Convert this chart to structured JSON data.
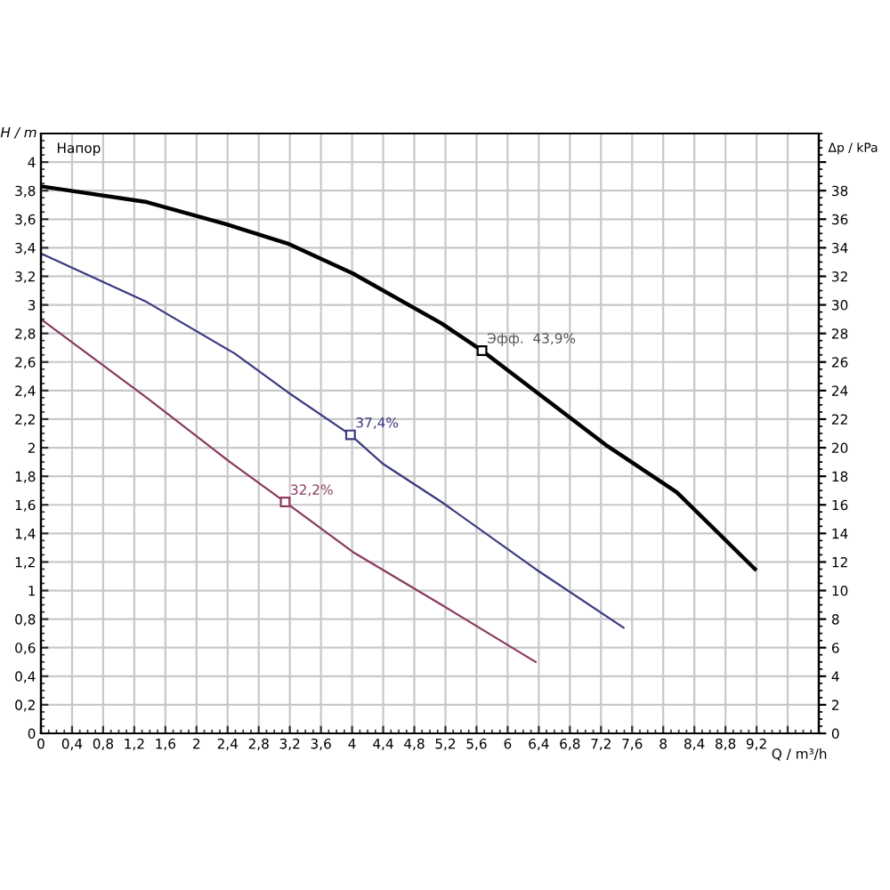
{
  "chart_data": {
    "type": "line",
    "xlabel": "Q / m³/h",
    "ylabel": "H / m",
    "y2label": "Δp / kPa",
    "series": [
      {
        "color": "#000000",
        "x": [
          0,
          1.36,
          2.35,
          3.17,
          4.01,
          5.15,
          5.67,
          7.26,
          8.17,
          9.18
        ],
        "values": [
          3.83,
          3.72,
          3.57,
          3.43,
          3.22,
          2.87,
          2.68,
          2.02,
          1.69,
          1.15
        ]
      },
      {
        "color": "#3a3a80",
        "x": [
          0,
          1.36,
          2.49,
          3.17,
          3.98,
          4.39,
          5.15,
          6.36,
          7.49
        ],
        "values": [
          3.36,
          3.02,
          2.66,
          2.39,
          2.09,
          1.89,
          1.62,
          1.15,
          0.74
        ]
      },
      {
        "color": "#8a3a60",
        "x": [
          0,
          1.36,
          2.43,
          3.14,
          4.01,
          5.15,
          6.36
        ],
        "values": [
          2.9,
          2.35,
          1.9,
          1.62,
          1.27,
          0.9,
          0.5
        ]
      }
    ],
    "annotations": [
      {
        "text": "Эфф.  43,9%",
        "x": 5.67,
        "y": 2.68
      },
      {
        "text": "37,4%",
        "x": 3.98,
        "y": 2.09
      },
      {
        "text": "32,2%",
        "x": 3.14,
        "y": 1.62
      },
      "Напор"
    ],
    "xlim": [
      0,
      10
    ],
    "xticks": [
      0,
      {
        "value": 0.4,
        "label": "0,4"
      },
      {
        "value": 0.8,
        "label": "0,8"
      },
      {
        "value": 1.2,
        "label": "1,2"
      },
      {
        "value": 1.6,
        "label": "1,6"
      },
      2,
      {
        "value": 2.4,
        "label": "2,4"
      },
      {
        "value": 2.8,
        "label": "2,8"
      },
      {
        "value": 3.2,
        "label": "3,2"
      },
      {
        "value": 3.6,
        "label": "3,6"
      },
      4,
      {
        "value": 4.4,
        "label": "4,4"
      },
      {
        "value": 4.8,
        "label": "4,8"
      },
      {
        "value": 5.2,
        "label": "5,2"
      },
      {
        "value": 5.6,
        "label": "5,6"
      },
      6,
      {
        "value": 6.4,
        "label": "6,4"
      },
      {
        "value": 6.8,
        "label": "6,8"
      },
      {
        "value": 7.2,
        "label": "7,2"
      },
      {
        "value": 7.6,
        "label": "7,6"
      },
      8,
      {
        "value": 8.4,
        "label": "8,4"
      },
      {
        "value": 8.8,
        "label": "8,8"
      },
      {
        "value": 9.2,
        "label": "9,2"
      },
      {
        "value": 9.6,
        "label": null
      }
    ],
    "ylim": [
      0,
      4.2
    ],
    "yticks": [
      0,
      {
        "value": 0.2,
        "label": "0,2"
      },
      {
        "value": 0.4,
        "label": "0,4"
      },
      {
        "value": 0.6,
        "label": "0,6"
      },
      {
        "value": 0.8,
        "label": "0,8"
      },
      1,
      {
        "value": 1.2,
        "label": "1,2"
      },
      {
        "value": 1.4,
        "label": "1,4"
      },
      {
        "value": 1.6,
        "label": "1,6"
      },
      {
        "value": 1.8,
        "label": "1,8"
      },
      2,
      {
        "value": 2.2,
        "label": "2,2"
      },
      {
        "value": 2.4,
        "label": "2,4"
      },
      {
        "value": 2.6,
        "label": "2,6"
      },
      {
        "value": 2.8,
        "label": "2,8"
      },
      3,
      {
        "value": 3.2,
        "label": "3,2"
      },
      {
        "value": 3.4,
        "label": "3,4"
      },
      {
        "value": 3.6,
        "label": "3,6"
      },
      {
        "value": 3.8,
        "label": "3,8"
      },
      4
    ],
    "y2lim": [
      0,
      42
    ],
    "y2ticks": [
      0,
      2,
      4,
      6,
      8,
      10,
      12,
      14,
      16,
      18,
      20,
      22,
      24,
      26,
      28,
      30,
      32,
      34,
      36,
      38,
      {
        "value": 40,
        "label": null
      }
    ],
    "grid": true,
    "marker": "none",
    "line_style": "solid"
  }
}
